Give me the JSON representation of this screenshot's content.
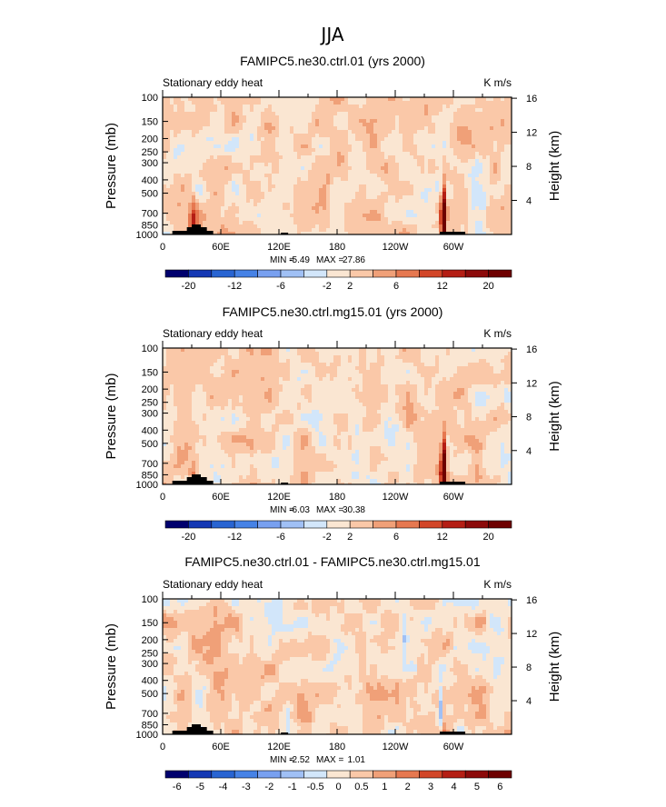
{
  "figure": {
    "title": "JJA"
  },
  "colors": {
    "scale": [
      "#00006e",
      "#1438b4",
      "#2864d2",
      "#4682e6",
      "#78a0f0",
      "#a0c0f5",
      "#d2e6fa",
      "#fae6d2",
      "#fac8a8",
      "#f0a078",
      "#e67850",
      "#d24628",
      "#b41e14",
      "#8c0a0a",
      "#6e0000"
    ],
    "terrain": "#000000"
  },
  "chart_data": [
    {
      "type": "heatmap",
      "title": "FAMIPC5.ne30.ctrl.01 (yrs 2000)",
      "left_label": "Stationary eddy heat",
      "right_label": "K m/s",
      "ylabel": "Pressure (mb)",
      "y2label": "Height (km)",
      "x_ticks": [
        "0",
        "60E",
        "120E",
        "180",
        "120W",
        "60W"
      ],
      "y_ticks": [
        "100",
        "150",
        "200",
        "250",
        "300",
        "400",
        "500",
        "700",
        "850",
        "1000"
      ],
      "y2_ticks": [
        "4",
        "8",
        "12",
        "16"
      ],
      "min_label": "MIN = ",
      "max_label": "MAX = ",
      "min": "-5.49",
      "max": "27.86",
      "colorbar_labels": [
        "-20",
        "-12",
        "-6",
        "-2",
        "2",
        "6",
        "12",
        "20"
      ],
      "colorbar_levels": [
        -20,
        -16,
        -12,
        -8,
        -6,
        -4,
        -2,
        0,
        2,
        4,
        6,
        8,
        12,
        16,
        20
      ],
      "features": [
        {
          "lon": 288,
          "p": 750,
          "value": 25,
          "width_deg": 2.5
        },
        {
          "lon": 288,
          "p": 450,
          "value": 3,
          "width_deg": 2
        },
        {
          "lon": 283,
          "p": 350,
          "value": -2.5,
          "width_deg": 2
        },
        {
          "lon": 30,
          "p": 820,
          "value": 8,
          "width_deg": 4
        }
      ]
    },
    {
      "type": "heatmap",
      "title": "FAMIPC5.ne30.ctrl.mg15.01 (yrs 2000)",
      "left_label": "Stationary eddy heat",
      "right_label": "K m/s",
      "ylabel": "Pressure (mb)",
      "y2label": "Height (km)",
      "x_ticks": [
        "0",
        "60E",
        "120E",
        "180",
        "120W",
        "60W"
      ],
      "y_ticks": [
        "100",
        "150",
        "200",
        "250",
        "300",
        "400",
        "500",
        "700",
        "850",
        "1000"
      ],
      "y2_ticks": [
        "4",
        "8",
        "12",
        "16"
      ],
      "min_label": "MIN = ",
      "max_label": "MAX = ",
      "min": "-6.03",
      "max": "30.38",
      "colorbar_labels": [
        "-20",
        "-12",
        "-6",
        "-2",
        "2",
        "6",
        "12",
        "20"
      ],
      "colorbar_levels": [
        -20,
        -16,
        -12,
        -8,
        -6,
        -4,
        -2,
        0,
        2,
        4,
        6,
        8,
        12,
        16,
        20
      ],
      "features": [
        {
          "lon": 288,
          "p": 780,
          "value": 28,
          "width_deg": 2.5
        },
        {
          "lon": 288,
          "p": 450,
          "value": 2.5,
          "width_deg": 2
        },
        {
          "lon": 30,
          "p": 850,
          "value": 5,
          "width_deg": 4
        }
      ]
    },
    {
      "type": "heatmap",
      "title": "FAMIPC5.ne30.ctrl.01 - FAMIPC5.ne30.ctrl.mg15.01",
      "left_label": "Stationary eddy heat",
      "right_label": "K m/s",
      "ylabel": "Pressure (mb)",
      "y2label": "Height (km)",
      "x_ticks": [
        "0",
        "60E",
        "120E",
        "180",
        "120W",
        "60W"
      ],
      "y_ticks": [
        "100",
        "150",
        "200",
        "250",
        "300",
        "400",
        "500",
        "700",
        "850",
        "1000"
      ],
      "y2_ticks": [
        "4",
        "8",
        "12",
        "16"
      ],
      "min_label": "MIN = ",
      "max_label": "MAX = ",
      "min": "-2.52",
      "max": "1.01",
      "colorbar_labels": [
        "-6",
        "-5",
        "-4",
        "-3",
        "-2",
        "-1",
        "-0.5",
        "0",
        "0.5",
        "1",
        "2",
        "3",
        "4",
        "5",
        "6"
      ],
      "colorbar_levels": [
        -6,
        -5,
        -4,
        -3,
        -2,
        -1,
        -0.5,
        0,
        0.5,
        1,
        2,
        3,
        4,
        5,
        6
      ],
      "features": [
        {
          "lon": 285,
          "p": 620,
          "value": -1.2,
          "width_deg": 2
        },
        {
          "lon": 290,
          "p": 820,
          "value": 0.8,
          "width_deg": 2
        },
        {
          "lon": 248,
          "p": 170,
          "value": -0.7,
          "width_deg": 3
        },
        {
          "lon": 128,
          "p": 850,
          "value": -0.8,
          "width_deg": 2
        }
      ]
    }
  ]
}
